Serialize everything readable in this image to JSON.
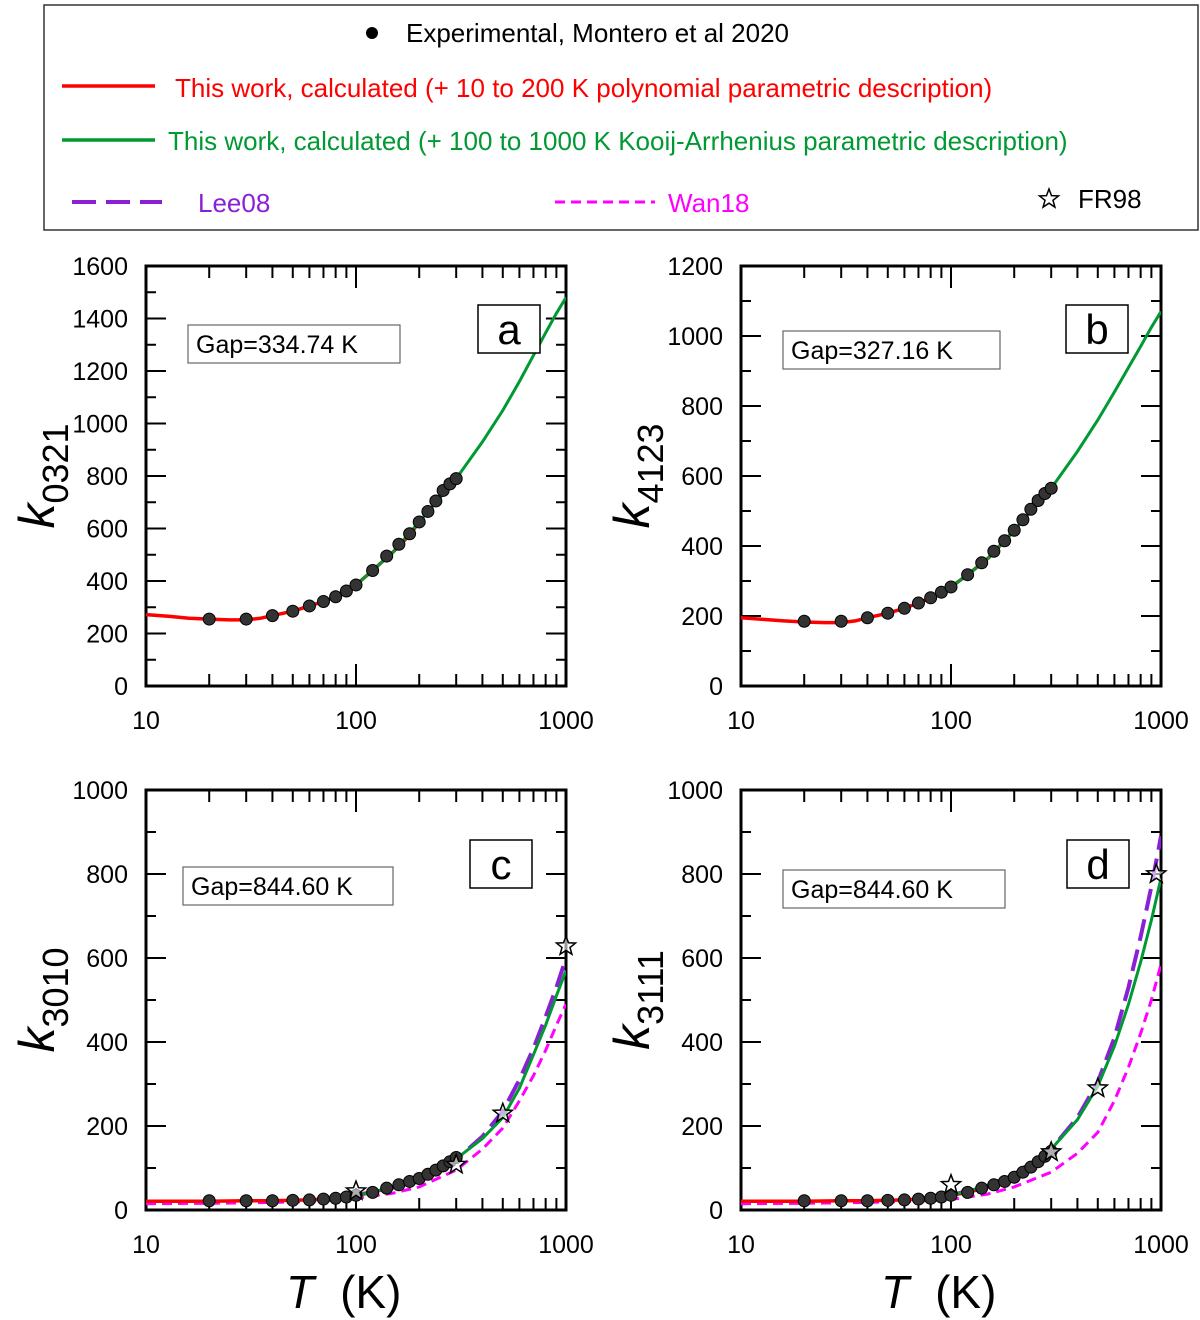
{
  "legend": {
    "entries": [
      {
        "key": "experimental",
        "label": "Experimental, Montero et al 2020",
        "color": "#000000",
        "symbol": "dot"
      },
      {
        "key": "poly",
        "label": "This work, calculated (+ 10 to 200 K polynomial parametric description)",
        "color": "#ff0000",
        "symbol": "line"
      },
      {
        "key": "kooij",
        "label": "This work, calculated (+ 100 to 1000 K Kooij-Arrhenius parametric description)",
        "color": "#009933",
        "symbol": "line"
      },
      {
        "key": "lee08",
        "label": "Lee08",
        "color": "#8b1fd6",
        "symbol": "longdash"
      },
      {
        "key": "wan18",
        "label": "Wan18",
        "color": "#ff00ff",
        "symbol": "shortdash"
      },
      {
        "key": "fr98",
        "label": "FR98",
        "color": "#000000",
        "symbol": "star"
      }
    ]
  },
  "chart_data": [
    {
      "id": "a",
      "type": "line",
      "panel_label": "a",
      "gap_label": "Gap=334.74 K",
      "ylabel_main": "k",
      "ylabel_sub": "0321",
      "xscale": "log",
      "xlim": [
        10,
        1000
      ],
      "ylim": [
        0,
        1600
      ],
      "yticks": [
        0,
        200,
        400,
        600,
        800,
        1000,
        1200,
        1400,
        1600
      ],
      "xticks": [
        10,
        100,
        1000
      ],
      "xlabel": "",
      "experimental": {
        "x": [
          20,
          30,
          40,
          50,
          60,
          70,
          80,
          90,
          100,
          120,
          140,
          160,
          180,
          200,
          220,
          240,
          260,
          280,
          300
        ],
        "y": [
          255,
          255,
          268,
          285,
          305,
          322,
          340,
          362,
          385,
          440,
          495,
          540,
          580,
          625,
          665,
          705,
          745,
          770,
          790
        ]
      },
      "poly": {
        "x": [
          10,
          13,
          16,
          20,
          25,
          30,
          35,
          40,
          50,
          60,
          70,
          80,
          90,
          100,
          120,
          150,
          180,
          200
        ],
        "y": [
          272,
          265,
          258,
          255,
          252,
          252,
          258,
          268,
          285,
          305,
          322,
          340,
          362,
          385,
          440,
          510,
          575,
          625
        ]
      },
      "kooij": {
        "x": [
          100,
          120,
          150,
          200,
          250,
          300,
          400,
          500,
          600,
          700,
          800,
          900,
          1000
        ],
        "y": [
          385,
          440,
          510,
          625,
          715,
          790,
          930,
          1050,
          1160,
          1260,
          1345,
          1420,
          1480
        ]
      }
    },
    {
      "id": "b",
      "type": "line",
      "panel_label": "b",
      "gap_label": "Gap=327.16 K",
      "ylabel_main": "k",
      "ylabel_sub": "4123",
      "xscale": "log",
      "xlim": [
        10,
        1000
      ],
      "ylim": [
        0,
        1200
      ],
      "yticks": [
        0,
        200,
        400,
        600,
        800,
        1000,
        1200
      ],
      "xticks": [
        10,
        100,
        1000
      ],
      "xlabel": "",
      "experimental": {
        "x": [
          20,
          30,
          40,
          50,
          60,
          70,
          80,
          90,
          100,
          120,
          140,
          160,
          180,
          200,
          220,
          240,
          260,
          280,
          300
        ],
        "y": [
          185,
          185,
          195,
          208,
          222,
          237,
          252,
          268,
          283,
          318,
          352,
          385,
          415,
          445,
          475,
          505,
          530,
          550,
          565
        ]
      },
      "poly": {
        "x": [
          10,
          13,
          16,
          20,
          25,
          30,
          35,
          40,
          50,
          60,
          70,
          80,
          90,
          100,
          120,
          150,
          180,
          200
        ],
        "y": [
          195,
          190,
          186,
          183,
          181,
          181,
          186,
          195,
          208,
          222,
          237,
          252,
          268,
          283,
          318,
          365,
          415,
          445
        ]
      },
      "kooij": {
        "x": [
          100,
          120,
          150,
          200,
          250,
          300,
          400,
          500,
          600,
          700,
          800,
          900,
          1000
        ],
        "y": [
          283,
          318,
          365,
          445,
          510,
          565,
          670,
          760,
          840,
          910,
          970,
          1025,
          1070
        ]
      }
    },
    {
      "id": "c",
      "type": "line",
      "panel_label": "c",
      "gap_label": "Gap=844.60 K",
      "ylabel_main": "k",
      "ylabel_sub": "3010",
      "xscale": "log",
      "xlim": [
        10,
        1000
      ],
      "ylim": [
        0,
        1000
      ],
      "yticks": [
        0,
        200,
        400,
        600,
        800,
        1000
      ],
      "xticks": [
        10,
        100,
        1000
      ],
      "xlabel": "T",
      "xunit": "(K)",
      "experimental": {
        "x": [
          20,
          30,
          40,
          50,
          60,
          70,
          80,
          90,
          100,
          120,
          140,
          160,
          180,
          200,
          220,
          240,
          260,
          280,
          300
        ],
        "y": [
          22,
          22,
          22,
          23,
          24,
          26,
          28,
          31,
          35,
          42,
          52,
          60,
          68,
          75,
          85,
          95,
          105,
          115,
          125
        ]
      },
      "poly": {
        "x": [
          10,
          15,
          20,
          30,
          40,
          50,
          60,
          70,
          80,
          90,
          100,
          120,
          150,
          200
        ],
        "y": [
          21,
          21,
          21,
          22,
          22,
          23,
          24,
          26,
          28,
          31,
          35,
          42,
          55,
          75
        ]
      },
      "kooij": {
        "x": [
          100,
          120,
          150,
          200,
          250,
          300,
          400,
          500,
          600,
          700,
          800,
          900,
          1000
        ],
        "y": [
          35,
          42,
          55,
          75,
          98,
          122,
          170,
          220,
          290,
          370,
          440,
          510,
          570
        ]
      },
      "lee08": {
        "x": [
          100,
          150,
          200,
          300,
          400,
          500,
          600,
          700,
          800,
          900,
          1000
        ],
        "y": [
          35,
          53,
          75,
          120,
          175,
          235,
          310,
          385,
          460,
          530,
          600
        ]
      },
      "wan18": {
        "x": [
          10,
          20,
          30,
          50,
          70,
          100,
          150,
          200,
          300,
          400,
          500,
          600,
          700,
          800,
          900,
          1000
        ],
        "y": [
          15,
          16,
          17,
          19,
          22,
          28,
          40,
          55,
          95,
          145,
          195,
          260,
          320,
          380,
          440,
          490
        ]
      },
      "fr98": {
        "x": [
          100,
          300,
          500,
          1000
        ],
        "y": [
          45,
          108,
          230,
          628
        ]
      }
    },
    {
      "id": "d",
      "type": "line",
      "panel_label": "d",
      "gap_label": "Gap=844.60 K",
      "ylabel_main": "k",
      "ylabel_sub": "3111",
      "xscale": "log",
      "xlim": [
        10,
        1000
      ],
      "ylim": [
        0,
        1000
      ],
      "yticks": [
        0,
        200,
        400,
        600,
        800,
        1000
      ],
      "xticks": [
        10,
        100,
        1000
      ],
      "xlabel": "T",
      "xunit": "(K)",
      "experimental": {
        "x": [
          20,
          30,
          40,
          50,
          60,
          70,
          80,
          90,
          100,
          120,
          140,
          160,
          180,
          200,
          220,
          240,
          260,
          280,
          300
        ],
        "y": [
          22,
          22,
          22,
          23,
          24,
          26,
          28,
          31,
          35,
          42,
          52,
          60,
          68,
          78,
          90,
          102,
          115,
          128,
          140
        ]
      },
      "poly": {
        "x": [
          10,
          15,
          20,
          30,
          40,
          50,
          60,
          70,
          80,
          90,
          100,
          120,
          150,
          200
        ],
        "y": [
          21,
          21,
          21,
          22,
          22,
          23,
          24,
          26,
          28,
          31,
          35,
          42,
          55,
          78
        ]
      },
      "kooij": {
        "x": [
          100,
          120,
          150,
          200,
          250,
          300,
          400,
          500,
          600,
          700,
          800,
          900,
          1000
        ],
        "y": [
          35,
          45,
          58,
          85,
          115,
          145,
          215,
          295,
          390,
          490,
          590,
          690,
          790
        ]
      },
      "lee08": {
        "x": [
          100,
          150,
          200,
          300,
          400,
          500,
          600,
          700,
          800,
          900,
          1000
        ],
        "y": [
          35,
          58,
          85,
          145,
          220,
          305,
          410,
          530,
          650,
          770,
          890
        ]
      },
      "wan18": {
        "x": [
          10,
          20,
          30,
          50,
          70,
          100,
          150,
          200,
          300,
          400,
          500,
          600,
          700,
          800,
          900,
          1000
        ],
        "y": [
          15,
          16,
          17,
          19,
          21,
          25,
          38,
          55,
          90,
          135,
          185,
          260,
          340,
          420,
          500,
          585
        ]
      },
      "fr98": {
        "x": [
          100,
          300,
          500,
          950
        ],
        "y": [
          60,
          138,
          290,
          800
        ]
      }
    }
  ]
}
